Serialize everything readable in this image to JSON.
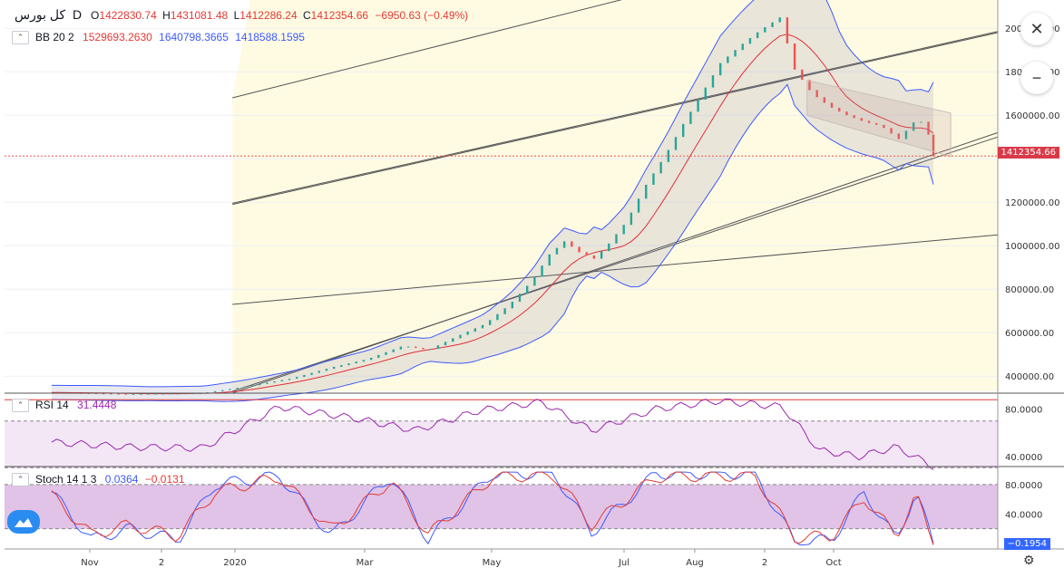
{
  "header": {
    "symbol": "کل بورس",
    "interval": "D",
    "o_label": "O",
    "o_value": "1422830.74",
    "h_label": "H",
    "h_value": "1431081.48",
    "l_label": "L",
    "l_value": "1412286.24",
    "c_label": "C",
    "c_value": "1412354.66",
    "change": "−6950.63 (−0.49%)",
    "chevron_icon": "chevron-down-icon"
  },
  "indicators": {
    "bb": {
      "label": "BB 20 2",
      "basis": "1529693.2630",
      "upper": "1640798.3665",
      "lower": "1418588.1595"
    },
    "rsi": {
      "label": "RSI 14",
      "value": "31.4448"
    },
    "stoch": {
      "label": "Stoch 14 1 3",
      "k": "0.0364",
      "d": "−0.0131"
    }
  },
  "price_tag": "1412354.66",
  "stoch_tag": "−0.1954",
  "colors": {
    "up": "#26a69a",
    "down": "#ef5350",
    "bb_basis": "#e0303a",
    "bb_band": "#3d5afe",
    "rsi": "#9c27b0",
    "stoch_k": "#3d5afe",
    "stoch_d": "#e53935",
    "channel_fill": "#fffbe3"
  },
  "icons": {
    "zoom": "close-circle-icon",
    "settings": "gear-icon",
    "logo": "tradingview-logo-icon"
  },
  "chart_data": [
    {
      "type": "line",
      "title": "کل بورس",
      "interval": "D",
      "y_ticks": [
        400000,
        600000,
        800000,
        1000000,
        1200000,
        1400000,
        1600000,
        1800000,
        2000000
      ],
      "y_tick_labels": [
        "400000.00",
        "600000.00",
        "800000.00",
        "1000000.00",
        "1200000.00",
        "1600000.00",
        "1800000.00",
        "2000000.00"
      ],
      "x_tick_labels": [
        "Nov",
        "2",
        "2020",
        "Mar",
        "May",
        "Jul",
        "Aug",
        "2",
        "Oct"
      ],
      "ylim": [
        330000,
        2130000
      ],
      "series": [
        {
          "name": "close",
          "x": [
            "2019-10-20",
            "2019-11-20",
            "2019-12-20",
            "2020-01-05",
            "2020-01-25",
            "2020-02-10",
            "2020-02-25",
            "2020-03-10",
            "2020-03-20",
            "2020-04-01",
            "2020-04-12",
            "2020-04-22",
            "2020-05-01",
            "2020-05-08",
            "2020-05-14",
            "2020-05-20",
            "2020-05-26",
            "2020-06-01",
            "2020-06-08",
            "2020-06-16",
            "2020-06-24",
            "2020-07-01",
            "2020-07-08",
            "2020-07-16",
            "2020-07-24",
            "2020-08-01",
            "2020-08-09",
            "2020-08-15",
            "2020-08-22",
            "2020-08-29",
            "2020-09-05",
            "2020-09-12",
            "2020-09-19",
            "2020-09-26",
            "2020-10-03",
            "2020-10-07",
            "2020-10-10"
          ],
          "values": [
            325000,
            318000,
            322000,
            350000,
            390000,
            440000,
            480000,
            540000,
            520000,
            585000,
            640000,
            730000,
            840000,
            960000,
            1020000,
            970000,
            940000,
            1010000,
            1110000,
            1280000,
            1420000,
            1560000,
            1690000,
            1840000,
            1920000,
            1990000,
            2050000,
            1810000,
            1700000,
            1640000,
            1600000,
            1570000,
            1550000,
            1490000,
            1580000,
            1560000,
            1412354
          ]
        }
      ]
    },
    {
      "type": "line",
      "title": "RSI 14",
      "y_ticks": [
        40,
        80
      ],
      "y_tick_labels": [
        "40.0000",
        "80.0000"
      ],
      "ylim": [
        33,
        92
      ],
      "series": [
        {
          "name": "RSI",
          "x": [
            "2019-10-20",
            "2019-11-20",
            "2019-12-20",
            "2020-01-20",
            "2020-02-20",
            "2020-03-15",
            "2020-04-10",
            "2020-05-05",
            "2020-05-25",
            "2020-06-20",
            "2020-07-15",
            "2020-08-10",
            "2020-08-25",
            "2020-09-10",
            "2020-09-25",
            "2020-10-10"
          ],
          "values": [
            52,
            48,
            47,
            82,
            72,
            62,
            79,
            86,
            62,
            80,
            87,
            82,
            45,
            40,
            48,
            31.4448
          ]
        }
      ]
    },
    {
      "type": "line",
      "title": "Stoch 14 1 3",
      "y_ticks": [
        40,
        80
      ],
      "y_tick_labels": [
        "40.0000",
        "80.0000"
      ],
      "ylim": [
        -5,
        102
      ],
      "series": [
        {
          "name": "%K",
          "x": [
            "2019-10-20",
            "2019-11-05",
            "2019-11-20",
            "2019-12-10",
            "2019-12-25",
            "2020-01-20",
            "2020-02-10",
            "2020-03-05",
            "2020-03-20",
            "2020-04-15",
            "2020-05-10",
            "2020-05-25",
            "2020-06-20",
            "2020-07-10",
            "2020-07-30",
            "2020-08-15",
            "2020-08-30",
            "2020-09-12",
            "2020-09-25",
            "2020-10-03",
            "2020-10-10"
          ],
          "values": [
            70,
            5,
            20,
            5,
            80,
            92,
            10,
            92,
            5,
            95,
            95,
            15,
            95,
            95,
            95,
            2,
            5,
            70,
            5,
            70,
            0.0364
          ]
        },
        {
          "name": "%D",
          "x": [
            "2019-10-20",
            "2019-11-05",
            "2019-11-20",
            "2019-12-10",
            "2019-12-25",
            "2020-01-20",
            "2020-02-10",
            "2020-03-05",
            "2020-03-20",
            "2020-04-15",
            "2020-05-10",
            "2020-05-25",
            "2020-06-20",
            "2020-07-10",
            "2020-07-30",
            "2020-08-15",
            "2020-08-30",
            "2020-09-12",
            "2020-09-25",
            "2020-10-03",
            "2020-10-10"
          ],
          "values": [
            65,
            12,
            25,
            10,
            70,
            90,
            18,
            85,
            12,
            90,
            93,
            25,
            90,
            92,
            92,
            8,
            10,
            62,
            10,
            65,
            -0.0131
          ]
        }
      ]
    }
  ]
}
